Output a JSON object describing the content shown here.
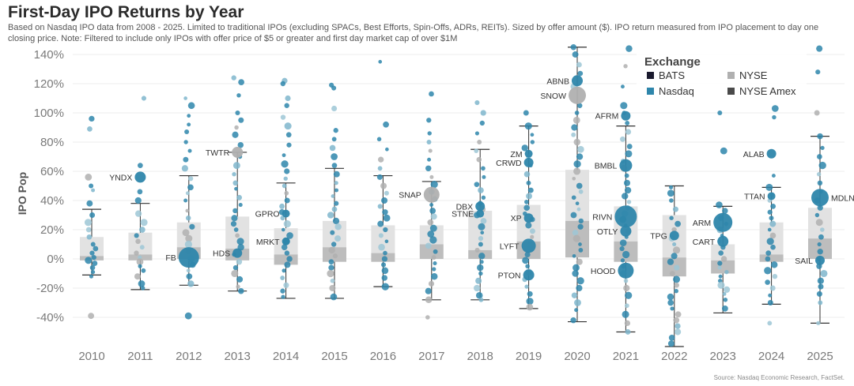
{
  "page": {
    "title": "First-Day IPO Returns by Year",
    "subtitle": "Based on Nasdaq IPO data from 2008 - 2025. Limited to traditional IPOs (excluding SPACs, Best Efforts, Spin-Offs, ADRs, REITs). Sized by offer amount ($). IPO return measured from IPO placement to day one closing price. Note: Filtered to include only IPOs with offer price of $5 or greater and first day market cap of over $1M",
    "source": "Source: Nasdaq Economic Research, FactSet."
  },
  "chart_data": {
    "type": "scatter",
    "subtype": "box-and-jitter",
    "title": "First-Day IPO Returns by Year",
    "ylabel": "IPO Pop",
    "xlabel": "",
    "ylim": [
      -60,
      145
    ],
    "yticks": [
      "140%",
      "120%",
      "100%",
      "80%",
      "60%",
      "40%",
      "20%",
      "0%",
      "-20%",
      "-40%"
    ],
    "ytick_values": [
      140,
      120,
      100,
      80,
      60,
      40,
      20,
      0,
      -20,
      -40
    ],
    "categories": [
      "2010",
      "2011",
      "2012",
      "2013",
      "2014",
      "2015",
      "2016",
      "2017",
      "2018",
      "2019",
      "2020",
      "2021",
      "2022",
      "2023",
      "2024",
      "2025"
    ],
    "colors": {
      "Nasdaq": "#2e86ab",
      "NYSE": "#b0b0b0",
      "NYSE Amex": "#4a4a4a",
      "BATS": "#1a1a2e",
      "box_light": "#e2e2e2",
      "box_dark": "#bdbdbd",
      "whisker": "#333333"
    },
    "legend": {
      "title": "Exchange",
      "items": [
        {
          "name": "BATS",
          "color": "#1a1a2e"
        },
        {
          "name": "NYSE",
          "color": "#b0b0b0"
        },
        {
          "name": "Nasdaq",
          "color": "#2e86ab"
        },
        {
          "name": "NYSE Amex",
          "color": "#4a4a4a"
        }
      ]
    },
    "boxes": [
      {
        "year": "2010",
        "low": -11,
        "q1": -1,
        "median": 2,
        "q3": 15,
        "high": 34
      },
      {
        "year": "2011",
        "low": -21,
        "q1": -1,
        "median": 3,
        "q3": 18,
        "high": 38
      },
      {
        "year": "2012",
        "low": -18,
        "q1": 0,
        "median": 8,
        "q3": 25,
        "high": 57
      },
      {
        "year": "2013",
        "low": -22,
        "q1": -1,
        "median": 7,
        "q3": 29,
        "high": 73
      },
      {
        "year": "2014",
        "low": -27,
        "q1": -4,
        "median": 3,
        "q3": 21,
        "high": 52
      },
      {
        "year": "2015",
        "low": -27,
        "q1": -2,
        "median": 8,
        "q3": 26,
        "high": 62
      },
      {
        "year": "2016",
        "low": -19,
        "q1": -2,
        "median": 4,
        "q3": 23,
        "high": 57
      },
      {
        "year": "2017",
        "low": -28,
        "q1": 0,
        "median": 10,
        "q3": 23,
        "high": 53
      },
      {
        "year": "2018",
        "low": -28,
        "q1": 0,
        "median": 6,
        "q3": 33,
        "high": 75
      },
      {
        "year": "2019",
        "low": -34,
        "q1": 0,
        "median": 12,
        "q3": 37,
        "high": 91
      },
      {
        "year": "2020",
        "low": -43,
        "q1": 1,
        "median": 26,
        "q3": 61,
        "high": 145
      },
      {
        "year": "2021",
        "low": -50,
        "q1": -2,
        "median": 12,
        "q3": 36,
        "high": 91
      },
      {
        "year": "2022",
        "low": -60,
        "q1": -12,
        "median": 1,
        "q3": 30,
        "high": 50
      },
      {
        "year": "2023",
        "low": -37,
        "q1": -10,
        "median": -1,
        "q3": 10,
        "high": 36
      },
      {
        "year": "2024",
        "low": -31,
        "q1": -2,
        "median": 3,
        "q3": 25,
        "high": 49
      },
      {
        "year": "2025",
        "low": -44,
        "q1": 0,
        "median": 14,
        "q3": 35,
        "high": 84
      }
    ],
    "highlighted_ipos": [
      {
        "label": "YNDX",
        "year": "2011",
        "value": 56,
        "exchange": "Nasdaq",
        "size": 7,
        "side": "left"
      },
      {
        "label": "FB",
        "year": "2012",
        "value": 1,
        "exchange": "Nasdaq",
        "size": 13,
        "side": "left"
      },
      {
        "label": "TWTR",
        "year": "2013",
        "value": 73,
        "exchange": "NYSE",
        "size": 7,
        "side": "left"
      },
      {
        "label": "HDS",
        "year": "2013",
        "value": 4,
        "exchange": "Nasdaq",
        "size": 6,
        "side": "left"
      },
      {
        "label": "GPRO",
        "year": "2014",
        "value": 31,
        "exchange": "Nasdaq",
        "size": 5,
        "side": "left"
      },
      {
        "label": "MRKT",
        "year": "2014",
        "value": 12,
        "exchange": "Nasdaq",
        "size": 5,
        "side": "left"
      },
      {
        "label": "SNAP",
        "year": "2017",
        "value": 44,
        "exchange": "NYSE",
        "size": 10,
        "side": "left"
      },
      {
        "label": "DBX",
        "year": "2018",
        "value": 36,
        "exchange": "Nasdaq",
        "size": 6,
        "side": "left"
      },
      {
        "label": "STNE",
        "year": "2018",
        "value": 31,
        "exchange": "Nasdaq",
        "size": 5,
        "side": "left"
      },
      {
        "label": "ZM",
        "year": "2019",
        "value": 72,
        "exchange": "Nasdaq",
        "size": 5,
        "side": "left"
      },
      {
        "label": "CRWD",
        "year": "2019",
        "value": 66,
        "exchange": "Nasdaq",
        "size": 6,
        "side": "left"
      },
      {
        "label": "XP",
        "year": "2019",
        "value": 28,
        "exchange": "Nasdaq",
        "size": 6,
        "side": "left"
      },
      {
        "label": "LYFT",
        "year": "2019",
        "value": 9,
        "exchange": "Nasdaq",
        "size": 9,
        "side": "left"
      },
      {
        "label": "PTON",
        "year": "2019",
        "value": -11,
        "exchange": "Nasdaq",
        "size": 7,
        "side": "left"
      },
      {
        "label": "ABNB",
        "year": "2020",
        "value": 122,
        "exchange": "Nasdaq",
        "size": 7,
        "side": "left"
      },
      {
        "label": "SNOW",
        "year": "2020",
        "value": 112,
        "exchange": "NYSE",
        "size": 11,
        "side": "left"
      },
      {
        "label": "AFRM",
        "year": "2021",
        "value": 98,
        "exchange": "Nasdaq",
        "size": 6,
        "side": "left"
      },
      {
        "label": "BMBL",
        "year": "2021",
        "value": 64,
        "exchange": "Nasdaq",
        "size": 8,
        "side": "left"
      },
      {
        "label": "RIVN",
        "year": "2021",
        "value": 29,
        "exchange": "Nasdaq",
        "size": 14,
        "side": "left"
      },
      {
        "label": "OTLY",
        "year": "2021",
        "value": 19,
        "exchange": "Nasdaq",
        "size": 7,
        "side": "left"
      },
      {
        "label": "HOOD",
        "year": "2021",
        "value": -8,
        "exchange": "Nasdaq",
        "size": 10,
        "side": "left"
      },
      {
        "label": "TPG",
        "year": "2022",
        "value": 16,
        "exchange": "Nasdaq",
        "size": 6,
        "side": "left"
      },
      {
        "label": "ARM",
        "year": "2023",
        "value": 25,
        "exchange": "Nasdaq",
        "size": 12,
        "side": "left"
      },
      {
        "label": "CART",
        "year": "2023",
        "value": 12,
        "exchange": "Nasdaq",
        "size": 7,
        "side": "left"
      },
      {
        "label": "ALAB",
        "year": "2024",
        "value": 72,
        "exchange": "Nasdaq",
        "size": 6,
        "side": "left"
      },
      {
        "label": "TTAN",
        "year": "2024",
        "value": 43,
        "exchange": "Nasdaq",
        "size": 5,
        "side": "left"
      },
      {
        "label": "MDLN",
        "year": "2025",
        "value": 42,
        "exchange": "Nasdaq",
        "size": 11,
        "side": "right"
      },
      {
        "label": "SAIL",
        "year": "2025",
        "value": -1,
        "exchange": "Nasdaq",
        "size": 6,
        "side": "left"
      }
    ],
    "other_points": {
      "2010": [
        96,
        89,
        56,
        50,
        47,
        38,
        30,
        25,
        20,
        15,
        10,
        7,
        4,
        1,
        -1,
        -3,
        -6,
        -9,
        -12,
        -39
      ],
      "2011": [
        110,
        64,
        46,
        40,
        31,
        25,
        20,
        16,
        12,
        8,
        4,
        1,
        -2,
        -5,
        -8,
        -12,
        -17,
        -20
      ],
      "2012": [
        110,
        105,
        98,
        92,
        87,
        80,
        74,
        68,
        62,
        55,
        49,
        45,
        40,
        33,
        28,
        22,
        18,
        14,
        10,
        5,
        0,
        -4,
        -8,
        -12,
        -17,
        -39
      ],
      "2013": [
        124,
        121,
        112,
        100,
        95,
        90,
        85,
        78,
        70,
        64,
        58,
        52,
        48,
        42,
        37,
        33,
        28,
        24,
        20,
        16,
        12,
        8,
        3,
        -2,
        -6,
        -10,
        -14,
        -19,
        -22
      ],
      "2014": [
        122,
        120,
        110,
        105,
        97,
        91,
        85,
        78,
        71,
        65,
        60,
        55,
        50,
        45,
        40,
        36,
        32,
        28,
        24,
        20,
        16,
        12,
        8,
        4,
        0,
        -4,
        -8,
        -13,
        -18,
        -22,
        -26
      ],
      "2015": [
        119,
        117,
        103,
        88,
        82,
        76,
        70,
        64,
        58,
        52,
        47,
        43,
        38,
        34,
        30,
        26,
        22,
        18,
        14,
        10,
        6,
        2,
        -2,
        -6,
        -10,
        -15,
        -20,
        -26
      ],
      "2016": [
        135,
        92,
        82,
        75,
        68,
        62,
        56,
        50,
        45,
        40,
        36,
        32,
        28,
        24,
        20,
        16,
        12,
        8,
        4,
        0,
        -4,
        -8,
        -13,
        -19
      ],
      "2017": [
        113,
        95,
        86,
        80,
        74,
        68,
        62,
        56,
        51,
        46,
        41,
        37,
        33,
        29,
        25,
        21,
        17,
        13,
        9,
        5,
        1,
        -3,
        -7,
        -12,
        -17,
        -22,
        -28,
        -40
      ],
      "2018": [
        107,
        100,
        93,
        86,
        80,
        74,
        68,
        62,
        56,
        51,
        47,
        42,
        38,
        34,
        30,
        26,
        22,
        18,
        14,
        10,
        6,
        2,
        -2,
        -6,
        -10,
        -15,
        -20,
        -25,
        -28
      ],
      "2019": [
        100,
        91,
        85,
        80,
        76,
        70,
        64,
        58,
        52,
        47,
        43,
        39,
        35,
        31,
        27,
        23,
        19,
        15,
        11,
        7,
        3,
        -1,
        -5,
        -9,
        -14,
        -19,
        -24,
        -29,
        -33
      ],
      "2020": [
        145,
        140,
        133,
        127,
        118,
        105,
        100,
        95,
        90,
        85,
        80,
        75,
        70,
        65,
        60,
        55,
        50,
        46,
        42,
        38,
        34,
        30,
        26,
        22,
        18,
        14,
        10,
        6,
        2,
        -2,
        -6,
        -10,
        -15,
        -20,
        -25,
        -30,
        -35,
        -42
      ],
      "2021": [
        144,
        132,
        118,
        105,
        100,
        93,
        87,
        82,
        77,
        72,
        67,
        62,
        57,
        52,
        47,
        43,
        39,
        35,
        31,
        27,
        23,
        19,
        15,
        11,
        7,
        3,
        -1,
        -5,
        -10,
        -15,
        -20,
        -25,
        -32,
        -38,
        -44,
        -50
      ],
      "2022": [
        49,
        45,
        40,
        34,
        28,
        24,
        20,
        14,
        10,
        6,
        2,
        -2,
        -6,
        -10,
        -14,
        -18,
        -22,
        -26,
        -30,
        -34,
        -38,
        -42,
        -46,
        -50,
        -54,
        -58
      ],
      "2023": [
        100,
        74,
        37,
        33,
        28,
        24,
        20,
        16,
        12,
        8,
        4,
        0,
        -3,
        -6,
        -9,
        -12,
        -15,
        -18,
        -21,
        -24,
        -28,
        -34
      ],
      "2024": [
        103,
        97,
        57,
        49,
        44,
        40,
        36,
        32,
        28,
        24,
        20,
        16,
        12,
        8,
        4,
        0,
        -4,
        -8,
        -12,
        -16,
        -20,
        -25,
        -30,
        -44
      ],
      "2025": [
        144,
        128,
        100,
        84,
        76,
        70,
        64,
        58,
        52,
        46,
        40,
        35,
        30,
        25,
        20,
        15,
        10,
        5,
        0,
        -5,
        -10,
        -15,
        -19,
        -24,
        -30,
        -44
      ]
    }
  }
}
